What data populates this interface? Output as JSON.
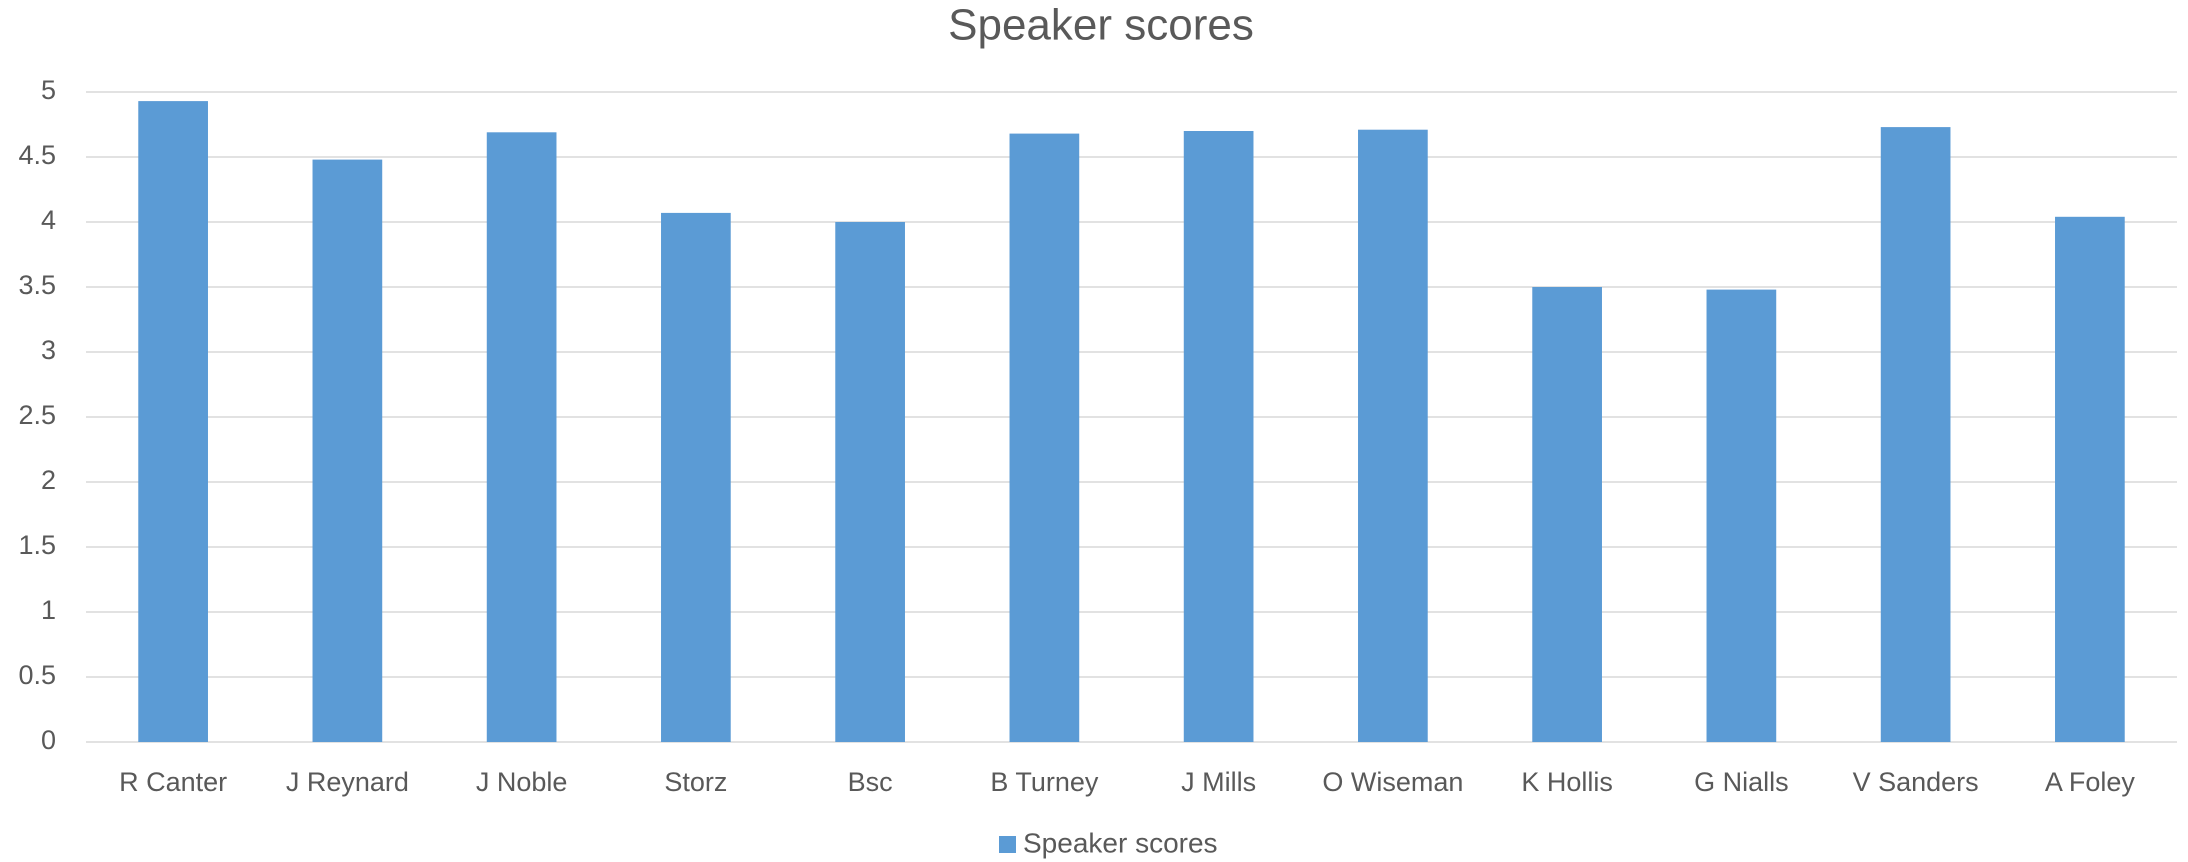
{
  "chart_data": {
    "type": "bar",
    "title": "Speaker scores",
    "categories": [
      "R Canter",
      "J Reynard",
      "J Noble",
      "Storz",
      "Bsc",
      "B Turney",
      "J Mills",
      "O Wiseman",
      "K Hollis",
      "G Nialls",
      "V Sanders",
      "A Foley"
    ],
    "series": [
      {
        "name": "Speaker scores",
        "color": "#5b9bd5",
        "values": [
          4.93,
          4.48,
          4.69,
          4.07,
          4.0,
          4.68,
          4.7,
          4.71,
          3.5,
          3.48,
          4.73,
          4.04
        ]
      }
    ],
    "ylim": [
      0,
      5
    ],
    "yticks": [
      0,
      0.5,
      1,
      1.5,
      2,
      2.5,
      3,
      3.5,
      4,
      4.5,
      5
    ],
    "grid": true,
    "legend": "bottom"
  }
}
